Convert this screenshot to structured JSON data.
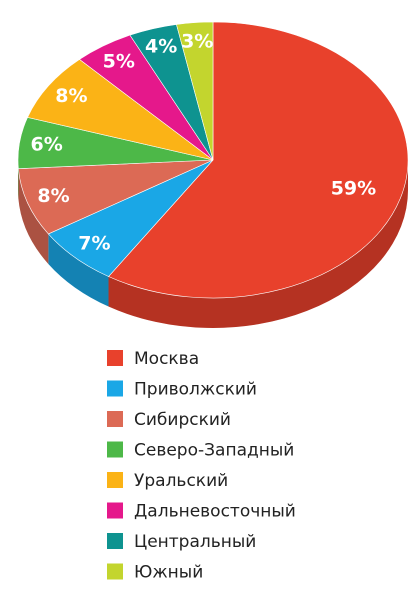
{
  "chart_data": {
    "type": "pie",
    "categories": [
      "Москва",
      "Приволжский",
      "Сибирский",
      "Северо-Западный",
      "Уральский",
      "Дальневосточный",
      "Центральный",
      "Южный"
    ],
    "values": [
      59,
      7,
      8,
      6,
      8,
      5,
      4,
      3
    ],
    "value_labels": [
      "59%",
      "7%",
      "8%",
      "6%",
      "8%",
      "5%",
      "4%",
      "3%"
    ],
    "colors": [
      "#e8412c",
      "#1aa7e6",
      "#dc6a55",
      "#4db848",
      "#fbb316",
      "#e5188b",
      "#0e9390",
      "#c3d52e"
    ]
  }
}
